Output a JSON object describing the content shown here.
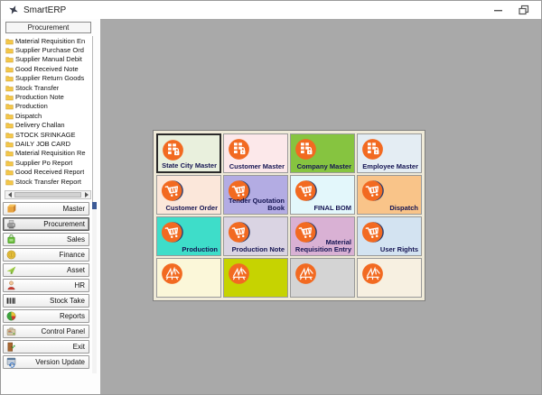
{
  "window": {
    "title": "SmartERP",
    "controls": [
      {
        "name": "minimize-button",
        "icon": "minimize-icon"
      },
      {
        "name": "restore-button",
        "icon": "restore-icon"
      }
    ]
  },
  "sidebar": {
    "header": "Procurement",
    "list_items": [
      "Material Requisition En",
      "Supplier Purchase Ord",
      "Supplier Manual Debit",
      "Good Received Note",
      "Supplier Return Goods",
      "Stock Transfer",
      "Production Note",
      "Production",
      "Dispatch",
      "Delivery Challan",
      "STOCK SRINKAGE",
      "DAILY JOB CARD",
      "Material Requisition Re",
      "Supplier Po Report",
      "Good Received Report",
      "Stock Transfer Report"
    ],
    "menu": [
      {
        "label": "Master",
        "icon": "cube-icon",
        "selected": false
      },
      {
        "label": "Procurement",
        "icon": "machine-icon",
        "selected": true
      },
      {
        "label": "Sales",
        "icon": "sales-box-icon",
        "selected": false
      },
      {
        "label": "Finance",
        "icon": "coin-icon",
        "selected": false
      },
      {
        "label": "Asset",
        "icon": "paper-plane-icon",
        "selected": false
      },
      {
        "label": "HR",
        "icon": "person-icon",
        "selected": false
      },
      {
        "label": "Stock Take",
        "icon": "barcode-icon",
        "selected": false
      },
      {
        "label": "Reports",
        "icon": "pie-chart-icon",
        "selected": false
      },
      {
        "label": "Control Panel",
        "icon": "toolbox-icon",
        "selected": false
      },
      {
        "label": "Exit",
        "icon": "exit-door-icon",
        "selected": false
      },
      {
        "label": "Version Update",
        "icon": "update-icon",
        "selected": false
      }
    ]
  },
  "main": {
    "tiles": [
      {
        "label": "State City Master",
        "bg": "#e9f0dd",
        "icon": "building-icon",
        "selected": true
      },
      {
        "label": "Customer Master",
        "bg": "#fce8ea",
        "icon": "building-icon",
        "selected": false
      },
      {
        "label": "Company Master",
        "bg": "#86c440",
        "icon": "building-icon",
        "selected": false
      },
      {
        "label": "Employee Master",
        "bg": "#e4edf3",
        "icon": "building-icon",
        "selected": false
      },
      {
        "label": "Customer Order",
        "bg": "#fbe7da",
        "icon": "cart-icon",
        "selected": false
      },
      {
        "label": "Tender Quotation Book",
        "bg": "#b3ace3",
        "icon": "cart-icon",
        "selected": false
      },
      {
        "label": "FINAL BOM",
        "bg": "#e3f7fb",
        "icon": "cart-icon",
        "selected": false
      },
      {
        "label": "Dispatch",
        "bg": "#f9c489",
        "icon": "cart-icon",
        "selected": false
      },
      {
        "label": "Production",
        "bg": "#3eddc9",
        "icon": "cart-icon",
        "selected": false
      },
      {
        "label": "Production Note",
        "bg": "#dad4e3",
        "icon": "cart-icon",
        "selected": false
      },
      {
        "label": "Material Requisition Entry",
        "bg": "#d9b1d4",
        "icon": "cart-icon",
        "selected": false
      },
      {
        "label": "User Rights",
        "bg": "#d3e3f1",
        "icon": "cart-icon",
        "selected": false
      },
      {
        "label": "",
        "bg": "#fbf7d9",
        "icon": "signature-icon",
        "selected": false
      },
      {
        "label": "",
        "bg": "#c6d301",
        "icon": "signature-icon",
        "selected": false
      },
      {
        "label": "",
        "bg": "#d4d4d4",
        "icon": "signature-icon",
        "selected": false
      },
      {
        "label": "",
        "bg": "#f7f0e1",
        "icon": "signature-icon",
        "selected": false
      }
    ]
  },
  "colors": {
    "accent_orange": "#f26a21",
    "icon_navy": "#2e3f6e",
    "tile_label": "#141452",
    "main_background": "#a9a9a9",
    "tile_panel_background": "#f0ebd9"
  }
}
